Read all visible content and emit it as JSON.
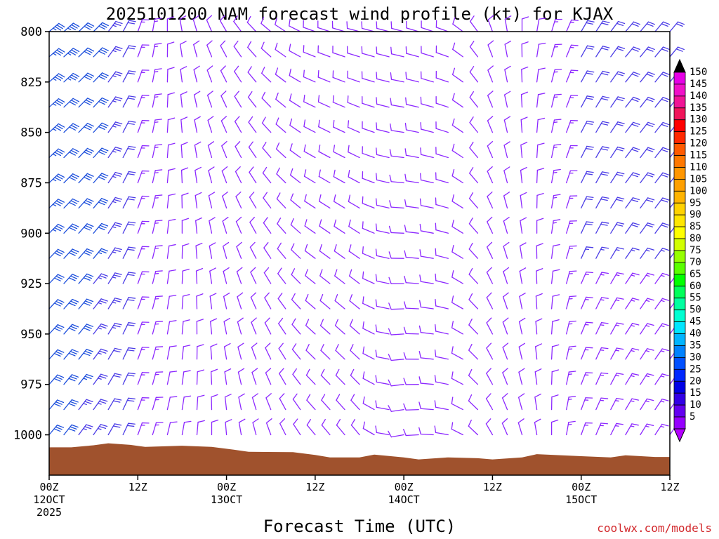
{
  "chart_data": {
    "type": "wind-barb-profile",
    "title": "2025101200 NAM forecast wind profile (kt) for KJAX",
    "xlabel": "Forecast Time (UTC)",
    "ylabel": "",
    "y_axis": {
      "range": [
        800,
        1020
      ],
      "inverted": true,
      "ticks": [
        "800",
        "825",
        "850",
        "875",
        "900",
        "925",
        "950",
        "975",
        "1000"
      ]
    },
    "x_axis": {
      "range_hours": [
        0,
        84
      ],
      "ticks": [
        {
          "hour": 0,
          "line1": "00Z",
          "line2": "12OCT",
          "line3": "2025"
        },
        {
          "hour": 12,
          "line1": "12Z",
          "line2": "",
          "line3": ""
        },
        {
          "hour": 24,
          "line1": "00Z",
          "line2": "13OCT",
          "line3": ""
        },
        {
          "hour": 36,
          "line1": "12Z",
          "line2": "",
          "line3": ""
        },
        {
          "hour": 48,
          "line1": "00Z",
          "line2": "14OCT",
          "line3": ""
        },
        {
          "hour": 60,
          "line1": "12Z",
          "line2": "",
          "line3": ""
        },
        {
          "hour": 72,
          "line1": "00Z",
          "line2": "15OCT",
          "line3": ""
        },
        {
          "hour": 84,
          "line1": "12Z",
          "line2": "",
          "line3": ""
        }
      ]
    },
    "barb_levels_hpa": [
      800,
      812.5,
      825,
      837.5,
      850,
      862.5,
      875,
      887.5,
      900,
      912.5,
      925,
      937.5,
      950,
      962.5,
      975,
      987.5,
      1000,
      1012.5
    ],
    "barb_times_hours": [
      0,
      2,
      4,
      6,
      8,
      10,
      12,
      14,
      16,
      18,
      20,
      22,
      24,
      26,
      28,
      30,
      32,
      34,
      36,
      38,
      40,
      42,
      44,
      46,
      48,
      50,
      52,
      54,
      56,
      58,
      60,
      62,
      64,
      66,
      68,
      70,
      72,
      74,
      76,
      78,
      80,
      82,
      84
    ],
    "wind_profile": [
      {
        "hour": 0,
        "surface_dir_deg": 40,
        "upper_dir_deg": 50,
        "surface_speed_kt": 30,
        "upper_speed_kt": 35
      },
      {
        "hour": 6,
        "surface_dir_deg": 35,
        "upper_dir_deg": 45,
        "surface_speed_kt": 25,
        "upper_speed_kt": 30
      },
      {
        "hour": 12,
        "surface_dir_deg": 20,
        "upper_dir_deg": 20,
        "surface_speed_kt": 15,
        "upper_speed_kt": 15
      },
      {
        "hour": 18,
        "surface_dir_deg": 10,
        "upper_dir_deg": 350,
        "surface_speed_kt": 10,
        "upper_speed_kt": 10
      },
      {
        "hour": 24,
        "surface_dir_deg": 355,
        "upper_dir_deg": 330,
        "surface_speed_kt": 10,
        "upper_speed_kt": 10
      },
      {
        "hour": 30,
        "surface_dir_deg": 340,
        "upper_dir_deg": 310,
        "surface_speed_kt": 10,
        "upper_speed_kt": 10
      },
      {
        "hour": 36,
        "surface_dir_deg": 320,
        "upper_dir_deg": 290,
        "surface_speed_kt": 10,
        "upper_speed_kt": 10
      },
      {
        "hour": 42,
        "surface_dir_deg": 320,
        "upper_dir_deg": 285,
        "surface_speed_kt": 10,
        "upper_speed_kt": 10
      },
      {
        "hour": 48,
        "surface_dir_deg": 260,
        "upper_dir_deg": 285,
        "surface_speed_kt": 10,
        "upper_speed_kt": 10
      },
      {
        "hour": 54,
        "surface_dir_deg": 280,
        "upper_dir_deg": 290,
        "surface_speed_kt": 10,
        "upper_speed_kt": 10
      },
      {
        "hour": 60,
        "surface_dir_deg": 330,
        "upper_dir_deg": 340,
        "surface_speed_kt": 10,
        "upper_speed_kt": 10
      },
      {
        "hour": 66,
        "surface_dir_deg": 350,
        "upper_dir_deg": 10,
        "surface_speed_kt": 10,
        "upper_speed_kt": 10
      },
      {
        "hour": 72,
        "surface_dir_deg": 20,
        "upper_dir_deg": 30,
        "surface_speed_kt": 15,
        "upper_speed_kt": 20
      },
      {
        "hour": 78,
        "surface_dir_deg": 30,
        "upper_dir_deg": 40,
        "surface_speed_kt": 15,
        "upper_speed_kt": 20
      },
      {
        "hour": 84,
        "surface_dir_deg": 35,
        "upper_dir_deg": 40,
        "surface_speed_kt": 15,
        "upper_speed_kt": 20
      }
    ],
    "terrain_surface_hpa": [
      {
        "hour": 0,
        "p": 1006.2
      },
      {
        "hour": 3,
        "p": 1006.2
      },
      {
        "hour": 6,
        "p": 1005.2
      },
      {
        "hour": 8,
        "p": 1004.2
      },
      {
        "hour": 11,
        "p": 1005.0
      },
      {
        "hour": 13,
        "p": 1006.0
      },
      {
        "hour": 18,
        "p": 1005.4
      },
      {
        "hour": 22,
        "p": 1006.0
      },
      {
        "hour": 25,
        "p": 1007.4
      },
      {
        "hour": 27,
        "p": 1008.4
      },
      {
        "hour": 33,
        "p": 1008.6
      },
      {
        "hour": 36,
        "p": 1010.0
      },
      {
        "hour": 38,
        "p": 1011.2
      },
      {
        "hour": 42,
        "p": 1011.2
      },
      {
        "hour": 44,
        "p": 1009.8
      },
      {
        "hour": 48,
        "p": 1011.2
      },
      {
        "hour": 50,
        "p": 1012.2
      },
      {
        "hour": 54,
        "p": 1011.2
      },
      {
        "hour": 58,
        "p": 1011.6
      },
      {
        "hour": 60,
        "p": 1012.2
      },
      {
        "hour": 64,
        "p": 1011.2
      },
      {
        "hour": 66,
        "p": 1009.6
      },
      {
        "hour": 72,
        "p": 1010.6
      },
      {
        "hour": 76,
        "p": 1011.2
      },
      {
        "hour": 78,
        "p": 1010.2
      },
      {
        "hour": 82,
        "p": 1011.0
      },
      {
        "hour": 84,
        "p": 1011.0
      }
    ],
    "colorbar": {
      "labels": [
        "150",
        "145",
        "140",
        "135",
        "130",
        "125",
        "120",
        "115",
        "110",
        "105",
        "100",
        "95",
        "90",
        "85",
        "80",
        "75",
        "70",
        "65",
        "60",
        "55",
        "50",
        "45",
        "40",
        "35",
        "30",
        "25",
        "20",
        "15",
        "10",
        "5"
      ],
      "colors": [
        "#e600e6",
        "#f010c8",
        "#f01496",
        "#f0145a",
        "#ff0000",
        "#ff2800",
        "#ff5a00",
        "#ff7800",
        "#ff9600",
        "#ffa000",
        "#ffb400",
        "#ffd200",
        "#ffe600",
        "#ffff00",
        "#d2ff00",
        "#96ff00",
        "#5aff00",
        "#00ff00",
        "#00ff5a",
        "#00ffa0",
        "#00ffd2",
        "#00e6ff",
        "#00b4ff",
        "#0082ff",
        "#0050ff",
        "#0028ff",
        "#0000e6",
        "#3200e6",
        "#6400f0",
        "#9600ff"
      ],
      "top_cap_color": "#000000",
      "bottom_cap_color": "#b400ff"
    },
    "colors": {
      "terrain": "#a0522d",
      "barb_strong": "#1e50dc",
      "barb_medium": "#4b3ce6",
      "barb_light": "#8c28ff",
      "credit": "#d2282c"
    }
  },
  "credit": "coolwx.com/models"
}
